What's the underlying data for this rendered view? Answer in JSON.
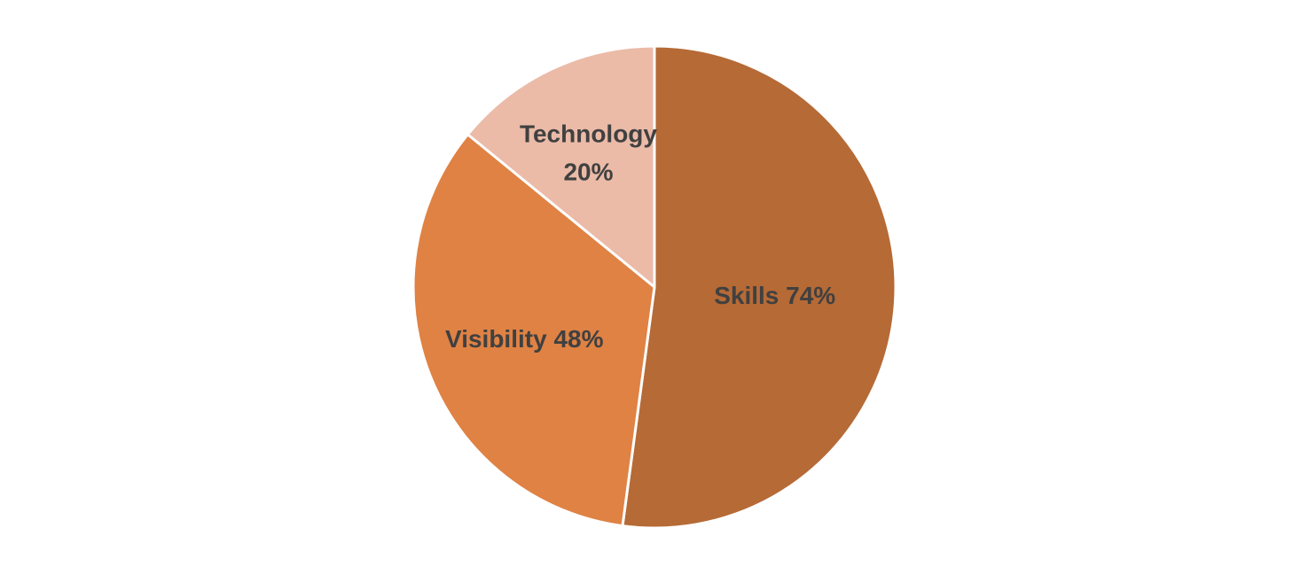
{
  "chart_data": {
    "type": "pie",
    "title": "",
    "start_angle_deg": 0,
    "direction": "clockwise",
    "legend": "none",
    "slices": [
      {
        "label": "Skills",
        "value": 74,
        "display": "74%",
        "color": "#B66A36"
      },
      {
        "label": "Visibility",
        "value": 48,
        "display": "48%",
        "color": "#DF8244"
      },
      {
        "label": "Technology",
        "value": 20,
        "display": "20%",
        "color": "#EBBBA8"
      }
    ]
  }
}
